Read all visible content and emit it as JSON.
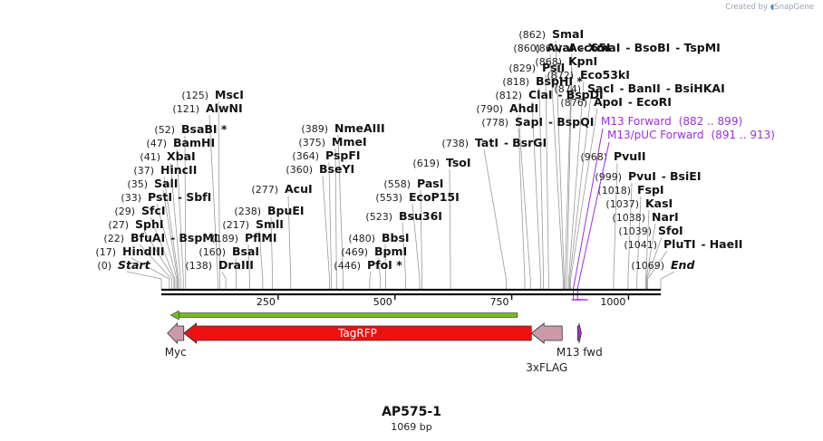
{
  "credit": {
    "prefix": "Created by",
    "brand": "SnapGene"
  },
  "plasmid": {
    "name": "AP575-1",
    "length_label": "1069 bp",
    "length": 1069
  },
  "ruler": {
    "ticks": [
      {
        "pos": 250,
        "label": "250"
      },
      {
        "pos": 500,
        "label": "500"
      },
      {
        "pos": 750,
        "label": "750"
      },
      {
        "pos": 1000,
        "label": "1000"
      }
    ]
  },
  "sites": [
    {
      "bp": 0,
      "pos_label": "(0)",
      "parts": [
        "Start"
      ],
      "italic": true
    },
    {
      "bp": 17,
      "pos_label": "(17)",
      "parts": [
        "HindIII"
      ]
    },
    {
      "bp": 22,
      "pos_label": "(22)",
      "parts": [
        "BfuAI",
        "BspMI"
      ]
    },
    {
      "bp": 27,
      "pos_label": "(27)",
      "parts": [
        "SphI"
      ]
    },
    {
      "bp": 29,
      "pos_label": "(29)",
      "parts": [
        "SfcI"
      ]
    },
    {
      "bp": 33,
      "pos_label": "(33)",
      "parts": [
        "PstI",
        "SbfI"
      ]
    },
    {
      "bp": 35,
      "pos_label": "(35)",
      "parts": [
        "SalI"
      ]
    },
    {
      "bp": 37,
      "pos_label": "(37)",
      "parts": [
        "HincII"
      ]
    },
    {
      "bp": 41,
      "pos_label": "(41)",
      "parts": [
        "XbaI"
      ]
    },
    {
      "bp": 47,
      "pos_label": "(47)",
      "parts": [
        "BamHI"
      ]
    },
    {
      "bp": 52,
      "pos_label": "(52)",
      "parts": [
        "BsaBI *"
      ]
    },
    {
      "bp": 121,
      "pos_label": "(121)",
      "parts": [
        "AlwNI"
      ]
    },
    {
      "bp": 125,
      "pos_label": "(125)",
      "parts": [
        "MscI"
      ]
    },
    {
      "bp": 138,
      "pos_label": "(138)",
      "parts": [
        "DraIII"
      ]
    },
    {
      "bp": 160,
      "pos_label": "(160)",
      "parts": [
        "BsaI"
      ]
    },
    {
      "bp": 189,
      "pos_label": "(189)",
      "parts": [
        "PflMI"
      ]
    },
    {
      "bp": 217,
      "pos_label": "(217)",
      "parts": [
        "SmlI"
      ]
    },
    {
      "bp": 238,
      "pos_label": "(238)",
      "parts": [
        "BpuEI"
      ]
    },
    {
      "bp": 277,
      "pos_label": "(277)",
      "parts": [
        "AcuI"
      ]
    },
    {
      "bp": 360,
      "pos_label": "(360)",
      "parts": [
        "BseYI"
      ]
    },
    {
      "bp": 364,
      "pos_label": "(364)",
      "parts": [
        "PspFI"
      ]
    },
    {
      "bp": 375,
      "pos_label": "(375)",
      "parts": [
        "MmeI"
      ]
    },
    {
      "bp": 389,
      "pos_label": "(389)",
      "parts": [
        "NmeAIII"
      ]
    },
    {
      "bp": 446,
      "pos_label": "(446)",
      "parts": [
        "PfoI *"
      ]
    },
    {
      "bp": 469,
      "pos_label": "(469)",
      "parts": [
        "BpmI"
      ]
    },
    {
      "bp": 480,
      "pos_label": "(480)",
      "parts": [
        "BbsI"
      ]
    },
    {
      "bp": 523,
      "pos_label": "(523)",
      "parts": [
        "Bsu36I"
      ]
    },
    {
      "bp": 553,
      "pos_label": "(553)",
      "parts": [
        "EcoP15I"
      ]
    },
    {
      "bp": 558,
      "pos_label": "(558)",
      "parts": [
        "PasI"
      ]
    },
    {
      "bp": 619,
      "pos_label": "(619)",
      "parts": [
        "TsoI"
      ]
    },
    {
      "bp": 738,
      "pos_label": "(738)",
      "parts": [
        "TatI",
        "BsrGI"
      ]
    },
    {
      "bp": 778,
      "pos_label": "(778)",
      "parts": [
        "SapI",
        "BspQI"
      ]
    },
    {
      "bp": 790,
      "pos_label": "(790)",
      "parts": [
        "AhdI"
      ]
    },
    {
      "bp": 812,
      "pos_label": "(812)",
      "parts": [
        "ClaI",
        "BspDI"
      ]
    },
    {
      "bp": 818,
      "pos_label": "(818)",
      "parts": [
        "BspHI *"
      ]
    },
    {
      "bp": 829,
      "pos_label": "(829)",
      "parts": [
        "PsiI"
      ]
    },
    {
      "bp": 860,
      "pos_label": "(860)",
      "parts": [
        "AvaI",
        "XmaI",
        "BsoBI",
        "TspMI"
      ]
    },
    {
      "bp": 862,
      "pos_label": "(862)",
      "parts": [
        "SmaI"
      ]
    },
    {
      "bp": 864,
      "pos_label": "(864)",
      "parts": [
        "Acc65I"
      ]
    },
    {
      "bp": 868,
      "pos_label": "(868)",
      "parts": [
        "KpnI"
      ]
    },
    {
      "bp": 872,
      "pos_label": "(872)",
      "parts": [
        "Eco53kI"
      ]
    },
    {
      "bp": 874,
      "pos_label": "(874)",
      "parts": [
        "SacI",
        "BanII",
        "BsiHKAI"
      ]
    },
    {
      "bp": 876,
      "pos_label": "(876)",
      "parts": [
        "ApoI",
        "EcoRI"
      ]
    },
    {
      "bp": 968,
      "pos_label": "(968)",
      "parts": [
        "PvuII"
      ]
    },
    {
      "bp": 999,
      "pos_label": "(999)",
      "parts": [
        "PvuI",
        "BsiEI"
      ]
    },
    {
      "bp": 1018,
      "pos_label": "(1018)",
      "parts": [
        "FspI"
      ]
    },
    {
      "bp": 1037,
      "pos_label": "(1037)",
      "parts": [
        "KasI"
      ]
    },
    {
      "bp": 1038,
      "pos_label": "(1038)",
      "parts": [
        "NarI"
      ]
    },
    {
      "bp": 1039,
      "pos_label": "(1039)",
      "parts": [
        "SfoI"
      ]
    },
    {
      "bp": 1041,
      "pos_label": "(1041)",
      "parts": [
        "PluTI",
        "HaeII"
      ]
    },
    {
      "bp": 1069,
      "pos_label": "(1069)",
      "parts": [
        "End"
      ],
      "italic": true
    }
  ],
  "primers": [
    {
      "name": "M13 Forward",
      "range_label": "(882 .. 899)",
      "start": 882,
      "end": 899
    },
    {
      "name": "M13/pUC Forward",
      "range_label": "(891 .. 913)",
      "start": 891,
      "end": 913
    }
  ],
  "features": [
    {
      "name": "TagRFP",
      "start": 48,
      "end": 792,
      "direction": "reverse",
      "color": "#ee1111",
      "label_inside": true
    },
    {
      "name": "Myc",
      "start": 13,
      "end": 48,
      "direction": "reverse",
      "color": "#cc99a8"
    },
    {
      "name": "3xFLAG",
      "start": 792,
      "end": 858,
      "direction": "reverse",
      "color": "#cc99a8"
    },
    {
      "name": "M13 fwd",
      "start": 891,
      "end": 899,
      "direction": "forward",
      "color": "#9b30d9"
    }
  ],
  "orf": {
    "start": 20,
    "end": 762,
    "direction": "reverse",
    "color": "#77bb22"
  }
}
